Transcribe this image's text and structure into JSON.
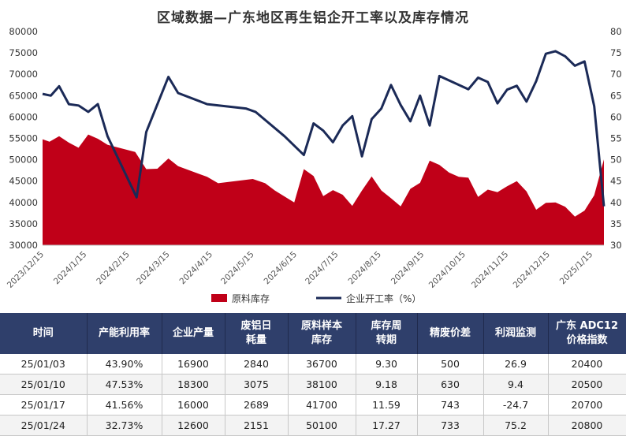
{
  "chart_data": {
    "type": "area+line",
    "title": "区域数据—广东地区再生铝企开工率以及库存情况",
    "left_axis": {
      "ticks": [
        "30000",
        "35000",
        "40000",
        "45000",
        "50000",
        "55000",
        "60000",
        "65000",
        "70000",
        "75000",
        "80000"
      ],
      "ylim": [
        30000,
        80000
      ]
    },
    "right_axis": {
      "ticks": [
        "30",
        "35",
        "40",
        "45",
        "50",
        "55",
        "60",
        "65",
        "70",
        "75",
        "80"
      ],
      "ylim": [
        30,
        80
      ]
    },
    "x_tick_labels": [
      "2023/12/15",
      "2024/1/15",
      "2024/2/15",
      "2024/3/15",
      "2024/4/15",
      "2024/5/15",
      "2024/6/15",
      "2024/7/15",
      "2024/8/15",
      "2024/9/15",
      "2024/10/15",
      "2024/11/15",
      "2024/12/15",
      "2025/1/15"
    ],
    "x_range": [
      "2023-12-15",
      "2025-01-24"
    ],
    "legend": [
      "原料库存",
      "企业开工率（%）"
    ],
    "legend_position": "bottom",
    "series": [
      {
        "name": "原料库存",
        "kind": "area",
        "color": "#c00018",
        "axis": "left",
        "points": [
          [
            "2023-12-15",
            54800
          ],
          [
            "2023-12-20",
            54200
          ],
          [
            "2023-12-27",
            55500
          ],
          [
            "2024-01-03",
            54000
          ],
          [
            "2024-01-10",
            52800
          ],
          [
            "2024-01-17",
            55900
          ],
          [
            "2024-01-24",
            54900
          ],
          [
            "2024-01-31",
            53500
          ],
          [
            "2024-02-20",
            51800
          ],
          [
            "2024-02-28",
            47800
          ],
          [
            "2024-03-07",
            47900
          ],
          [
            "2024-03-15",
            50300
          ],
          [
            "2024-03-22",
            48500
          ],
          [
            "2024-04-12",
            46000
          ],
          [
            "2024-04-20",
            44500
          ],
          [
            "2024-05-15",
            45500
          ],
          [
            "2024-05-24",
            44500
          ],
          [
            "2024-05-31",
            42800
          ],
          [
            "2024-06-14",
            40000
          ],
          [
            "2024-06-21",
            47800
          ],
          [
            "2024-06-28",
            46200
          ],
          [
            "2024-07-05",
            41500
          ],
          [
            "2024-07-12",
            42900
          ],
          [
            "2024-07-19",
            41800
          ],
          [
            "2024-07-26",
            39200
          ],
          [
            "2024-08-02",
            42800
          ],
          [
            "2024-08-09",
            46100
          ],
          [
            "2024-08-16",
            42800
          ],
          [
            "2024-08-23",
            41000
          ],
          [
            "2024-08-30",
            39100
          ],
          [
            "2024-09-06",
            43200
          ],
          [
            "2024-09-13",
            44600
          ],
          [
            "2024-09-20",
            49800
          ],
          [
            "2024-09-27",
            48800
          ],
          [
            "2024-10-04",
            47000
          ],
          [
            "2024-10-11",
            46000
          ],
          [
            "2024-10-18",
            45800
          ],
          [
            "2024-10-25",
            41300
          ],
          [
            "2024-11-01",
            43000
          ],
          [
            "2024-11-08",
            42400
          ],
          [
            "2024-11-15",
            43800
          ],
          [
            "2024-11-22",
            45000
          ],
          [
            "2024-11-29",
            42600
          ],
          [
            "2024-12-06",
            38300
          ],
          [
            "2024-12-13",
            39900
          ],
          [
            "2024-12-20",
            40000
          ],
          [
            "2024-12-27",
            39000
          ],
          [
            "2025-01-03",
            36700
          ],
          [
            "2025-01-10",
            38100
          ],
          [
            "2025-01-17",
            41700
          ],
          [
            "2025-01-24",
            50100
          ]
        ]
      },
      {
        "name": "企业开工率（%）",
        "kind": "line",
        "color": "#1b2a57",
        "axis": "right",
        "points": [
          [
            "2023-12-15",
            65.4
          ],
          [
            "2023-12-21",
            65
          ],
          [
            "2023-12-27",
            67.2
          ],
          [
            "2024-01-03",
            63
          ],
          [
            "2024-01-10",
            62.7
          ],
          [
            "2024-01-17",
            61.2
          ],
          [
            "2024-01-24",
            63
          ],
          [
            "2024-01-31",
            55.5
          ],
          [
            "2024-02-21",
            41.2
          ],
          [
            "2024-02-28",
            56.5
          ],
          [
            "2024-03-15",
            69.4
          ],
          [
            "2024-03-22",
            65.6
          ],
          [
            "2024-04-12",
            63
          ],
          [
            "2024-05-10",
            62
          ],
          [
            "2024-05-17",
            61.2
          ],
          [
            "2024-06-07",
            55.5
          ],
          [
            "2024-06-21",
            51.1
          ],
          [
            "2024-06-28",
            58.5
          ],
          [
            "2024-07-05",
            56.8
          ],
          [
            "2024-07-12",
            54.1
          ],
          [
            "2024-07-19",
            58
          ],
          [
            "2024-07-26",
            60.2
          ],
          [
            "2024-08-02",
            50.8
          ],
          [
            "2024-08-09",
            59.5
          ],
          [
            "2024-08-16",
            62
          ],
          [
            "2024-08-23",
            67.5
          ],
          [
            "2024-08-30",
            62.8
          ],
          [
            "2024-09-06",
            59
          ],
          [
            "2024-09-13",
            65
          ],
          [
            "2024-09-20",
            58
          ],
          [
            "2024-09-27",
            69.6
          ],
          [
            "2024-10-18",
            66.5
          ],
          [
            "2024-10-25",
            69.2
          ],
          [
            "2024-11-01",
            68.2
          ],
          [
            "2024-11-08",
            63.2
          ],
          [
            "2024-11-15",
            66.4
          ],
          [
            "2024-11-22",
            67.3
          ],
          [
            "2024-11-29",
            63.6
          ],
          [
            "2024-12-06",
            68.4
          ],
          [
            "2024-12-13",
            74.8
          ],
          [
            "2024-12-20",
            75.4
          ],
          [
            "2024-12-27",
            74.2
          ],
          [
            "2025-01-03",
            72
          ],
          [
            "2025-01-10",
            73
          ],
          [
            "2025-01-17",
            62.5
          ],
          [
            "2025-01-24",
            39.1
          ]
        ]
      }
    ]
  },
  "table": {
    "headers": [
      [
        "时间"
      ],
      [
        "产能利用率"
      ],
      [
        "企业产量"
      ],
      [
        "废铝日",
        "耗量"
      ],
      [
        "原料样本",
        "库存"
      ],
      [
        "库存周",
        "转期"
      ],
      [
        "精废价差"
      ],
      [
        "利润监测"
      ],
      [
        "广东 ADC12",
        "价格指数"
      ]
    ],
    "rows": [
      [
        "25/01/03",
        "43.90%",
        "16900",
        "2840",
        "36700",
        "9.30",
        "500",
        "26.9",
        "20400"
      ],
      [
        "25/01/10",
        "47.53%",
        "18300",
        "3075",
        "38100",
        "9.18",
        "630",
        "9.4",
        "20500"
      ],
      [
        "25/01/17",
        "41.56%",
        "16000",
        "2689",
        "41700",
        "11.59",
        "743",
        "-24.7",
        "20700"
      ],
      [
        "25/01/24",
        "32.73%",
        "12600",
        "2151",
        "50100",
        "17.27",
        "733",
        "75.2",
        "20800"
      ]
    ]
  }
}
